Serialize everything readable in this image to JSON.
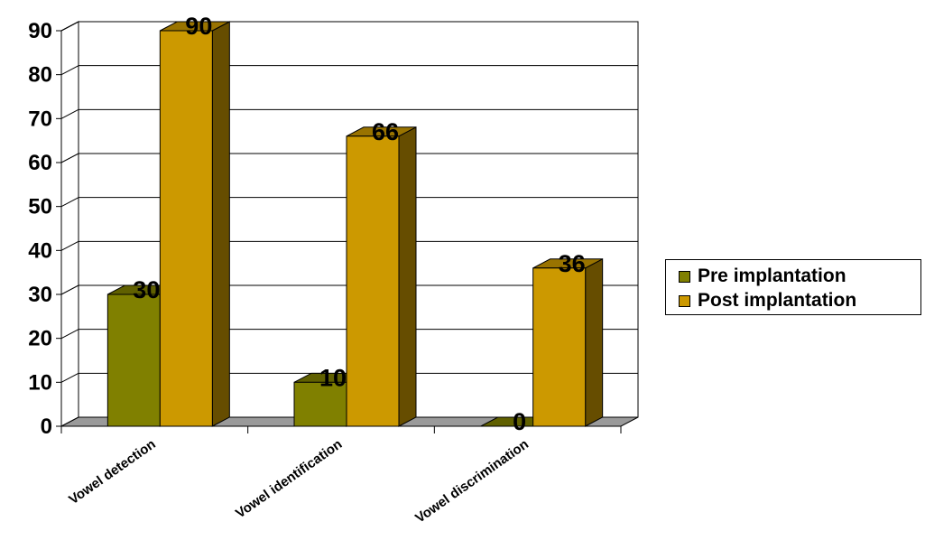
{
  "chart_data": {
    "type": "bar",
    "title": "",
    "xlabel": "",
    "ylabel": "",
    "ylim": [
      0,
      90
    ],
    "yticks": [
      0,
      10,
      20,
      30,
      40,
      50,
      60,
      70,
      80,
      90
    ],
    "categories": [
      "Vowel detection",
      "Vowel identification",
      "Vowel discrimination"
    ],
    "series": [
      {
        "name": "Pre implantation",
        "values": [
          30,
          10,
          0
        ],
        "color": "#808000"
      },
      {
        "name": "Post implantation",
        "values": [
          90,
          66,
          36
        ],
        "color": "#cc9900"
      }
    ],
    "grid": true,
    "legend_position": "right",
    "data_labels": true,
    "style": "3d"
  },
  "legend": {
    "items": [
      {
        "label": "Pre implantation"
      },
      {
        "label": "Post implantation"
      }
    ]
  }
}
